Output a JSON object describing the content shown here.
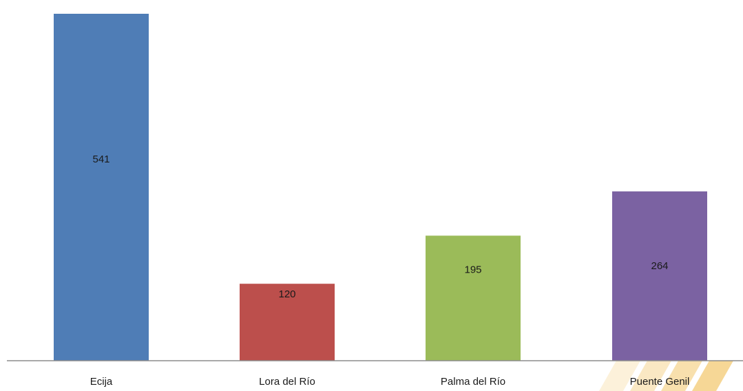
{
  "chart_data": {
    "type": "bar",
    "title": "",
    "xlabel": "",
    "ylabel": "",
    "categories": [
      "Ecija",
      "Lora del Río",
      "Palma del Río",
      "Puente Genil"
    ],
    "values": [
      541,
      120,
      195,
      264
    ],
    "data_labels": [
      "541",
      "120",
      "195",
      "264"
    ],
    "colors": [
      "#4f7db6",
      "#bc4f4c",
      "#9bbb59",
      "#7b62a2"
    ],
    "ylim": [
      0,
      541
    ],
    "grid": false,
    "legend": "none",
    "axis_color": "#8c8c8c",
    "decoration_accent": "#f2c66a"
  }
}
